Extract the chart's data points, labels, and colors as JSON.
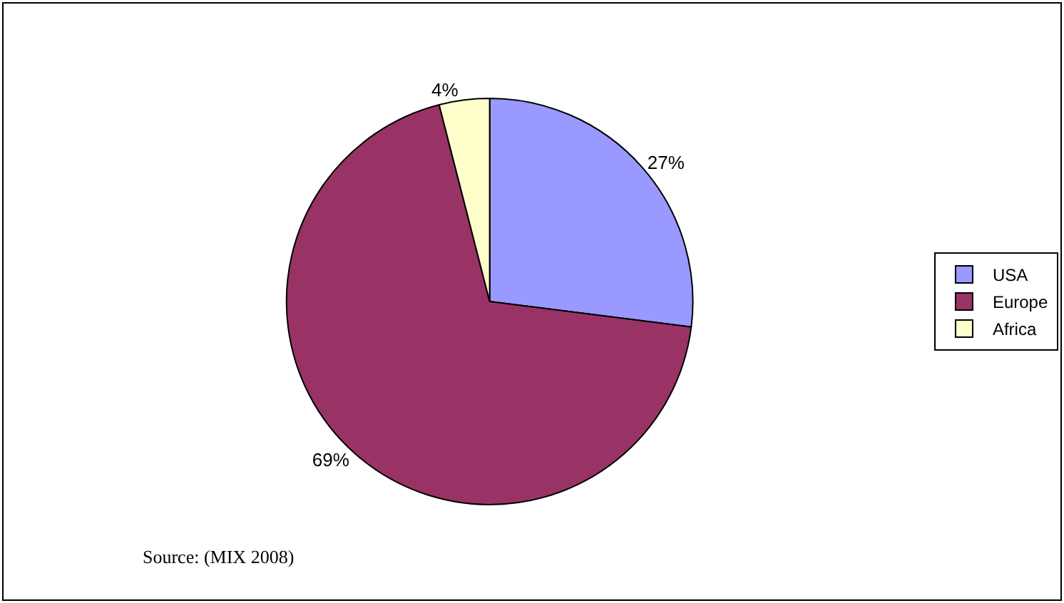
{
  "chart_data": {
    "type": "pie",
    "categories": [
      "USA",
      "Europe",
      "Africa"
    ],
    "values": [
      27,
      69,
      4
    ],
    "colors": [
      "#9999ff",
      "#993366",
      "#ffffcc"
    ],
    "value_labels": [
      "27%",
      "69%",
      "4%"
    ],
    "legend": "right",
    "annotations": [
      "Source: (MIX 2008)"
    ]
  }
}
